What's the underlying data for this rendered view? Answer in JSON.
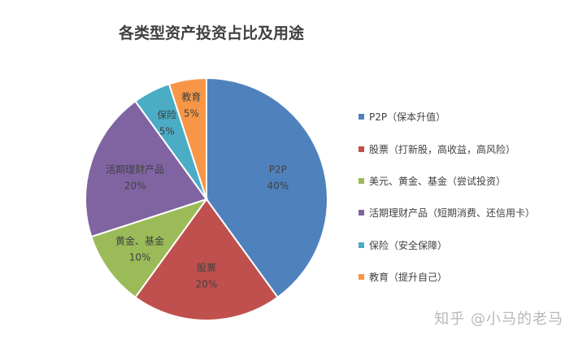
{
  "chart_data": {
    "type": "pie",
    "title": "各类型资产投资占比及用途",
    "slices": [
      {
        "label": "P2P",
        "value": 40,
        "percent_label": "40%",
        "color": "#4f81bd",
        "legend": "P2P（保本升值）"
      },
      {
        "label": "股票",
        "value": 20,
        "percent_label": "20%",
        "color": "#c0504d",
        "legend": "股票（打新股，高收益，高风险）"
      },
      {
        "label": "黄金、基金",
        "value": 10,
        "percent_label": "10%",
        "color": "#9bbb59",
        "legend": "美元、黄金、基金（尝试投资）"
      },
      {
        "label": "活期理财产品",
        "value": 20,
        "percent_label": "20%",
        "color": "#8064a2",
        "legend": "活期理财产品（短期消费、还信用卡）"
      },
      {
        "label": "保险",
        "value": 5,
        "percent_label": "5%",
        "color": "#4bacc6",
        "legend": "保险（安全保障）"
      },
      {
        "label": "教育",
        "value": 5,
        "percent_label": "5%",
        "color": "#f79646",
        "legend": "教育（提升自己）"
      }
    ],
    "legend_position": "right"
  },
  "watermark": "知乎 @小马的老马"
}
